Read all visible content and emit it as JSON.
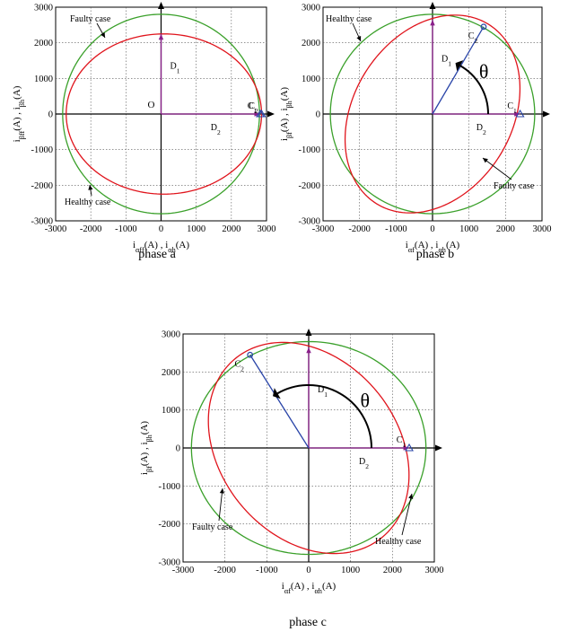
{
  "chart_data": [
    {
      "type": "line",
      "caption": "phase a",
      "xlabel": "i_αff(A) , i_αh(A)",
      "ylabel": "i_βff(A) , i_βh(A)",
      "xlim": [
        -3000,
        3000
      ],
      "ylim": [
        -3000,
        3000
      ],
      "xticks": [
        -3000,
        -2000,
        -1000,
        0,
        1000,
        2000,
        3000
      ],
      "yticks": [
        -3000,
        -2000,
        -1000,
        0,
        1000,
        2000,
        3000
      ],
      "grid": true,
      "series": [
        {
          "name": "Healthy case",
          "color": "#3aa02a",
          "curve": "ellipse",
          "center": [
            0,
            0
          ],
          "radius_x": 2800,
          "radius_y": 2800,
          "tilt_deg": 0
        },
        {
          "name": "Faulty case",
          "color": "#e0141c",
          "curve": "ellipse",
          "center": [
            80,
            0
          ],
          "radius_x": 2780,
          "radius_y": 2250,
          "tilt_deg": 0
        }
      ],
      "vectors": [
        {
          "label": "D1",
          "from": [
            0,
            0
          ],
          "to": [
            0,
            2250
          ],
          "color": "#8a1f8a"
        },
        {
          "label": "D2",
          "from": [
            0,
            0
          ],
          "to": [
            2820,
            0
          ],
          "color": "#8a1f8a"
        }
      ],
      "points": [
        {
          "label": "C1",
          "x": 2820,
          "y": 0
        },
        {
          "label": "C2",
          "x": 2860,
          "y": 0
        }
      ],
      "annotations": [
        "O"
      ]
    },
    {
      "type": "line",
      "caption": "phase b",
      "xlabel": "i_αf(A) , i_αh(A)",
      "ylabel": "i_βf(A) , i_βh(A)",
      "xlim": [
        -3000,
        3000
      ],
      "ylim": [
        -3000,
        3000
      ],
      "xticks": [
        -3000,
        -2000,
        -1000,
        0,
        1000,
        2000,
        3000
      ],
      "yticks": [
        -3000,
        -2000,
        -1000,
        0,
        1000,
        2000,
        3000
      ],
      "grid": true,
      "series": [
        {
          "name": "Healthy case",
          "color": "#3aa02a",
          "curve": "ellipse",
          "center": [
            0,
            0
          ],
          "radius_x": 2800,
          "radius_y": 2800,
          "tilt_deg": 0
        },
        {
          "name": "Faulty case",
          "color": "#e0141c",
          "curve": "ellipse",
          "center": [
            0,
            0
          ],
          "radius_x": 2950,
          "radius_y": 2180,
          "tilt_deg": 60
        }
      ],
      "vectors": [
        {
          "label": "D1",
          "from": [
            0,
            0
          ],
          "to": [
            0,
            2650
          ],
          "color": "#8a1f8a"
        },
        {
          "label": "D2",
          "from": [
            0,
            0
          ],
          "to": [
            2400,
            0
          ],
          "color": "#8a1f8a"
        },
        {
          "label": "",
          "from": [
            0,
            0
          ],
          "to": [
            1400,
            2450
          ],
          "color": "#2a45a8"
        }
      ],
      "points": [
        {
          "label": "C1",
          "x": 2400,
          "y": 0
        },
        {
          "label": "C2",
          "x": 1400,
          "y": 2450
        }
      ],
      "angle_label": "θ"
    },
    {
      "type": "line",
      "caption": "phase c",
      "xlabel": "i_αf(A) , i_αh(A)",
      "ylabel": "i_βf(A) , i_βh(A)",
      "xlim": [
        -3000,
        3000
      ],
      "ylim": [
        -3000,
        3000
      ],
      "xticks": [
        -3000,
        -2000,
        -1000,
        0,
        1000,
        2000,
        3000
      ],
      "yticks": [
        -3000,
        -2000,
        -1000,
        0,
        1000,
        2000,
        3000
      ],
      "grid": true,
      "series": [
        {
          "name": "Healthy case",
          "color": "#3aa02a",
          "curve": "ellipse",
          "center": [
            0,
            0
          ],
          "radius_x": 2800,
          "radius_y": 2800,
          "tilt_deg": 0
        },
        {
          "name": "Faulty case",
          "color": "#e0141c",
          "curve": "ellipse",
          "center": [
            0,
            0
          ],
          "radius_x": 2950,
          "radius_y": 2180,
          "tilt_deg": 120
        }
      ],
      "vectors": [
        {
          "label": "D1",
          "from": [
            0,
            0
          ],
          "to": [
            0,
            2650
          ],
          "color": "#8a1f8a"
        },
        {
          "label": "D2",
          "from": [
            0,
            0
          ],
          "to": [
            2400,
            0
          ],
          "color": "#8a1f8a"
        },
        {
          "label": "",
          "from": [
            0,
            0
          ],
          "to": [
            -1400,
            2450
          ],
          "color": "#2a45a8"
        }
      ],
      "points": [
        {
          "label": "C1",
          "x": 2400,
          "y": 0
        },
        {
          "label": "C2",
          "x": -1400,
          "y": 2450
        }
      ],
      "angle_label": "θ"
    }
  ]
}
